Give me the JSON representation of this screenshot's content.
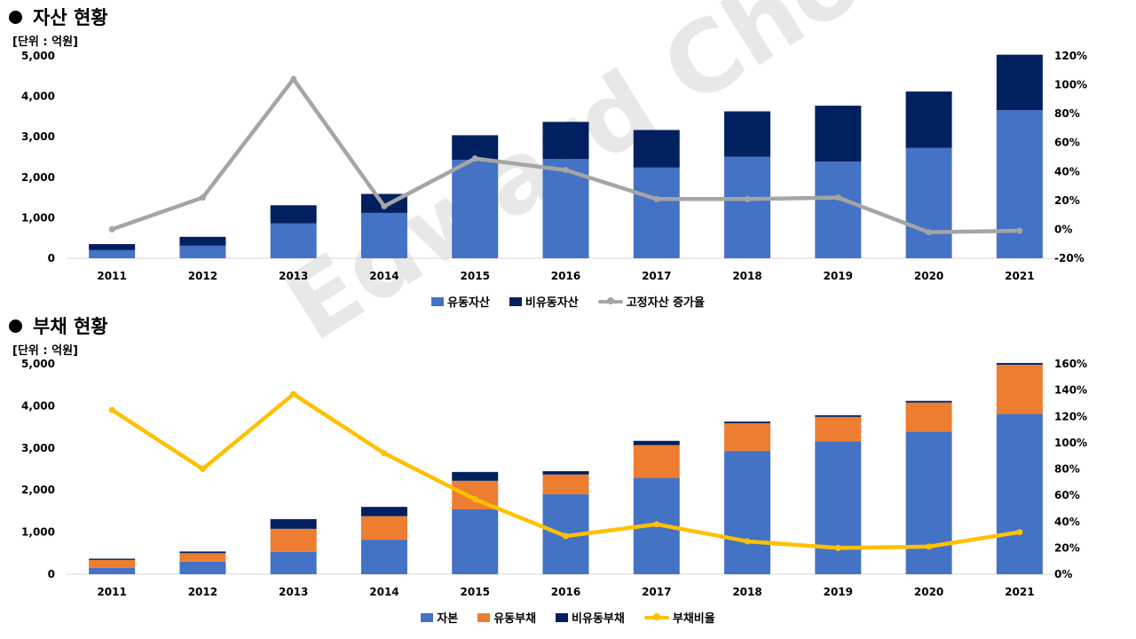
{
  "watermark": "Edward Choi",
  "colors": {
    "blue": "#4472c4",
    "navy": "#002060",
    "orange": "#ed7d31",
    "gray": "#a5a5a5",
    "yellow": "#ffc000"
  },
  "chart_data": [
    {
      "type": "bar",
      "stacked": true,
      "title": "자산 현황",
      "unit_label": "[단위 : 억원]",
      "categories": [
        "2011",
        "2012",
        "2013",
        "2014",
        "2015",
        "2016",
        "2017",
        "2018",
        "2019",
        "2020",
        "2021"
      ],
      "y_left": {
        "min": 0,
        "max": 5000,
        "ticks": [
          "0",
          "1,000",
          "2,000",
          "3,000",
          "4,000",
          "5,000"
        ]
      },
      "y_right": {
        "min": -20,
        "max": 120,
        "ticks": [
          "-20%",
          "0%",
          "20%",
          "40%",
          "60%",
          "80%",
          "100%",
          "120%"
        ]
      },
      "series": [
        {
          "name": "유동자산",
          "kind": "bar",
          "color": "#4472c4",
          "values": [
            200,
            310,
            860,
            1120,
            2430,
            2450,
            2240,
            2510,
            2390,
            2730,
            3660
          ]
        },
        {
          "name": "비유동자산",
          "kind": "bar",
          "color": "#002060",
          "values": [
            150,
            220,
            450,
            470,
            610,
            920,
            930,
            1120,
            1380,
            1390,
            1370
          ]
        },
        {
          "name": "고정자산 증가율",
          "kind": "line",
          "axis": "right",
          "color": "#a5a5a5",
          "values": [
            0,
            22,
            104,
            16,
            49,
            41,
            21,
            21,
            22,
            -2,
            -1
          ]
        }
      ]
    },
    {
      "type": "bar",
      "stacked": true,
      "title": "부채 현황",
      "unit_label": "[단위 : 억원]",
      "categories": [
        "2011",
        "2012",
        "2013",
        "2014",
        "2015",
        "2016",
        "2017",
        "2018",
        "2019",
        "2020",
        "2021"
      ],
      "y_left": {
        "min": 0,
        "max": 5000,
        "ticks": [
          "0",
          "1,000",
          "2,000",
          "3,000",
          "4,000",
          "5,000"
        ]
      },
      "y_right": {
        "min": 0,
        "max": 160,
        "ticks": [
          "0%",
          "20%",
          "40%",
          "60%",
          "80%",
          "100%",
          "120%",
          "140%",
          "160%"
        ]
      },
      "series": [
        {
          "name": "자본",
          "kind": "bar",
          "color": "#4472c4",
          "values": [
            150,
            300,
            530,
            820,
            1540,
            1900,
            2290,
            2930,
            3160,
            3390,
            3810
          ]
        },
        {
          "name": "유동부채",
          "kind": "bar",
          "color": "#ed7d31",
          "values": [
            190,
            200,
            550,
            560,
            680,
            470,
            780,
            660,
            580,
            690,
            1170
          ]
        },
        {
          "name": "비유동부채",
          "kind": "bar",
          "color": "#002060",
          "values": [
            30,
            40,
            230,
            220,
            210,
            80,
            100,
            40,
            40,
            40,
            40
          ]
        },
        {
          "name": "부채비율",
          "kind": "line",
          "axis": "right",
          "color": "#ffc000",
          "values": [
            125,
            80,
            137,
            92,
            57,
            29,
            38,
            25,
            20,
            21,
            32
          ]
        }
      ]
    }
  ]
}
